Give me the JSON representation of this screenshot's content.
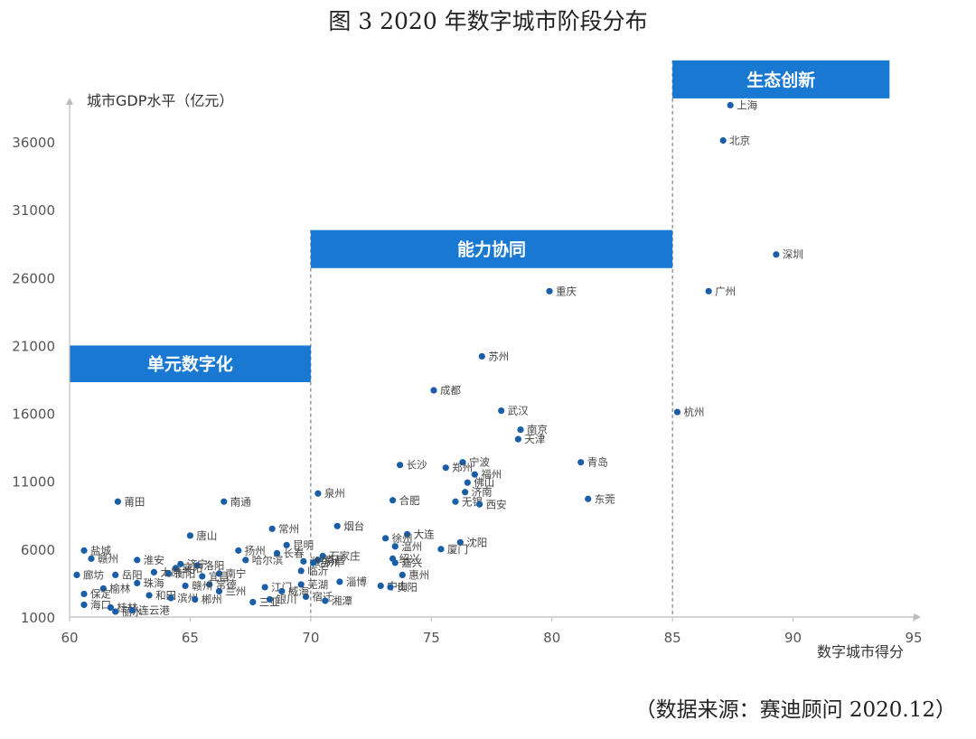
{
  "title": "图 3 2020 年数字城市阶段分布",
  "source": "（数据来源：赛迪顾问 2020.12）",
  "chart_data": {
    "type": "scatter",
    "xlabel": "数字城市得分",
    "ylabel": "城市GDP水平（亿元）",
    "xlim": [
      60,
      95
    ],
    "ylim": [
      1000,
      38500
    ],
    "x_ticks": [
      60,
      65,
      70,
      75,
      80,
      85,
      90,
      95
    ],
    "y_ticks": [
      1000,
      6000,
      11000,
      16000,
      21000,
      26000,
      31000,
      36000
    ],
    "point_color": "#1a5ea8",
    "stage_color": "#1878d2",
    "stages": [
      {
        "label": "单元数字化",
        "x_from": 60,
        "x_to": 70,
        "y_low": 18300,
        "y_high": 21000
      },
      {
        "label": "能力协同",
        "x_from": 70,
        "x_to": 85,
        "y_low": 26700,
        "y_high": 29500
      },
      {
        "label": "生态创新",
        "x_from": 85,
        "x_to": 94,
        "y_low": 39200,
        "y_high": 42000
      }
    ],
    "stage_boundaries": [
      70,
      85
    ],
    "points": [
      {
        "label": "上海",
        "x": 87.4,
        "y": 38700
      },
      {
        "label": "北京",
        "x": 87.1,
        "y": 36100
      },
      {
        "label": "深圳",
        "x": 89.3,
        "y": 27700
      },
      {
        "label": "广州",
        "x": 86.5,
        "y": 25000
      },
      {
        "label": "杭州",
        "x": 85.2,
        "y": 16100
      },
      {
        "label": "重庆",
        "x": 79.9,
        "y": 25000
      },
      {
        "label": "苏州",
        "x": 77.1,
        "y": 20200
      },
      {
        "label": "成都",
        "x": 75.1,
        "y": 17700
      },
      {
        "label": "武汉",
        "x": 77.9,
        "y": 16200
      },
      {
        "label": "南京",
        "x": 78.7,
        "y": 14800
      },
      {
        "label": "天津",
        "x": 78.6,
        "y": 14100
      },
      {
        "label": "青岛",
        "x": 81.2,
        "y": 12400
      },
      {
        "label": "东莞",
        "x": 81.5,
        "y": 9700
      },
      {
        "label": "宁波",
        "x": 76.3,
        "y": 12400
      },
      {
        "label": "福州",
        "x": 76.8,
        "y": 11500
      },
      {
        "label": "佛山",
        "x": 76.5,
        "y": 10900
      },
      {
        "label": "长沙",
        "x": 73.7,
        "y": 12200
      },
      {
        "label": "郑州",
        "x": 75.6,
        "y": 12000
      },
      {
        "label": "济南",
        "x": 76.4,
        "y": 10200
      },
      {
        "label": "无锡",
        "x": 76.0,
        "y": 9500
      },
      {
        "label": "西安",
        "x": 77.0,
        "y": 9300
      },
      {
        "label": "泉州",
        "x": 70.3,
        "y": 10100
      },
      {
        "label": "合肥",
        "x": 73.4,
        "y": 9600
      },
      {
        "label": "烟台",
        "x": 71.1,
        "y": 7700
      },
      {
        "label": "大连",
        "x": 74.0,
        "y": 7100
      },
      {
        "label": "徐州",
        "x": 73.1,
        "y": 6800
      },
      {
        "label": "温州",
        "x": 73.5,
        "y": 6200
      },
      {
        "label": "沈阳",
        "x": 76.2,
        "y": 6500
      },
      {
        "label": "厦门",
        "x": 75.4,
        "y": 6000
      },
      {
        "label": "绍兴",
        "x": 73.4,
        "y": 5300
      },
      {
        "label": "嘉兴",
        "x": 73.5,
        "y": 5000
      },
      {
        "label": "惠州",
        "x": 73.8,
        "y": 4100
      },
      {
        "label": "淄博",
        "x": 71.2,
        "y": 3600
      },
      {
        "label": "中山",
        "x": 72.9,
        "y": 3300
      },
      {
        "label": "贵阳",
        "x": 73.3,
        "y": 3200
      },
      {
        "label": "石家庄",
        "x": 70.5,
        "y": 5500
      },
      {
        "label": "南昌",
        "x": 70.3,
        "y": 5200
      },
      {
        "label": "临沂",
        "x": 69.6,
        "y": 4400
      },
      {
        "label": "芜湖",
        "x": 69.6,
        "y": 3400
      },
      {
        "label": "宿迁",
        "x": 69.8,
        "y": 2500
      },
      {
        "label": "湘潭",
        "x": 70.6,
        "y": 2200
      },
      {
        "label": "常州",
        "x": 68.4,
        "y": 7500
      },
      {
        "label": "昆明",
        "x": 69.0,
        "y": 6300
      },
      {
        "label": "长春",
        "x": 68.6,
        "y": 5700
      },
      {
        "label": "潍坊",
        "x": 69.7,
        "y": 5100
      },
      {
        "label": "台州",
        "x": 70.1,
        "y": 5000
      },
      {
        "label": "扬州",
        "x": 67.0,
        "y": 5900
      },
      {
        "label": "哈尔滨",
        "x": 67.3,
        "y": 5200
      },
      {
        "label": "江门",
        "x": 68.1,
        "y": 3200
      },
      {
        "label": "威海",
        "x": 68.8,
        "y": 2900
      },
      {
        "label": "银川",
        "x": 68.3,
        "y": 2300
      },
      {
        "label": "三亚",
        "x": 67.6,
        "y": 2100
      },
      {
        "label": "兰州",
        "x": 66.2,
        "y": 2900
      },
      {
        "label": "南通",
        "x": 66.4,
        "y": 9500
      },
      {
        "label": "唐山",
        "x": 65.0,
        "y": 7000
      },
      {
        "label": "淮安",
        "x": 62.8,
        "y": 5200
      },
      {
        "label": "济宁",
        "x": 64.6,
        "y": 4900
      },
      {
        "label": "洛阳",
        "x": 65.3,
        "y": 4800
      },
      {
        "label": "南宁",
        "x": 66.2,
        "y": 4200
      },
      {
        "label": "宜昌",
        "x": 65.5,
        "y": 4000
      },
      {
        "label": "常德",
        "x": 65.8,
        "y": 3400
      },
      {
        "label": "莆田",
        "x": 62.0,
        "y": 9500
      },
      {
        "label": "盐城",
        "x": 60.6,
        "y": 5900
      },
      {
        "label": "赣州",
        "x": 60.9,
        "y": 5300
      },
      {
        "label": "襄阳",
        "x": 64.4,
        "y": 4600
      },
      {
        "label": "衡阳",
        "x": 64.1,
        "y": 4200
      },
      {
        "label": "太原",
        "x": 63.5,
        "y": 4300
      },
      {
        "label": "珠海",
        "x": 62.8,
        "y": 3500
      },
      {
        "label": "岳阳",
        "x": 61.9,
        "y": 4100
      },
      {
        "label": "廊坊",
        "x": 60.3,
        "y": 4100
      },
      {
        "label": "榆林",
        "x": 61.4,
        "y": 3100
      },
      {
        "label": "保定",
        "x": 60.6,
        "y": 2700
      },
      {
        "label": "赣州",
        "x": 64.8,
        "y": 3300
      },
      {
        "label": "和田",
        "x": 63.3,
        "y": 2600
      },
      {
        "label": "滨州",
        "x": 64.2,
        "y": 2400
      },
      {
        "label": "郴州",
        "x": 65.2,
        "y": 2300
      },
      {
        "label": "海口",
        "x": 60.6,
        "y": 1900
      },
      {
        "label": "桂林",
        "x": 61.7,
        "y": 1700
      },
      {
        "label": "丽水",
        "x": 61.9,
        "y": 1400
      },
      {
        "label": "连云港",
        "x": 62.6,
        "y": 1500
      }
    ]
  }
}
